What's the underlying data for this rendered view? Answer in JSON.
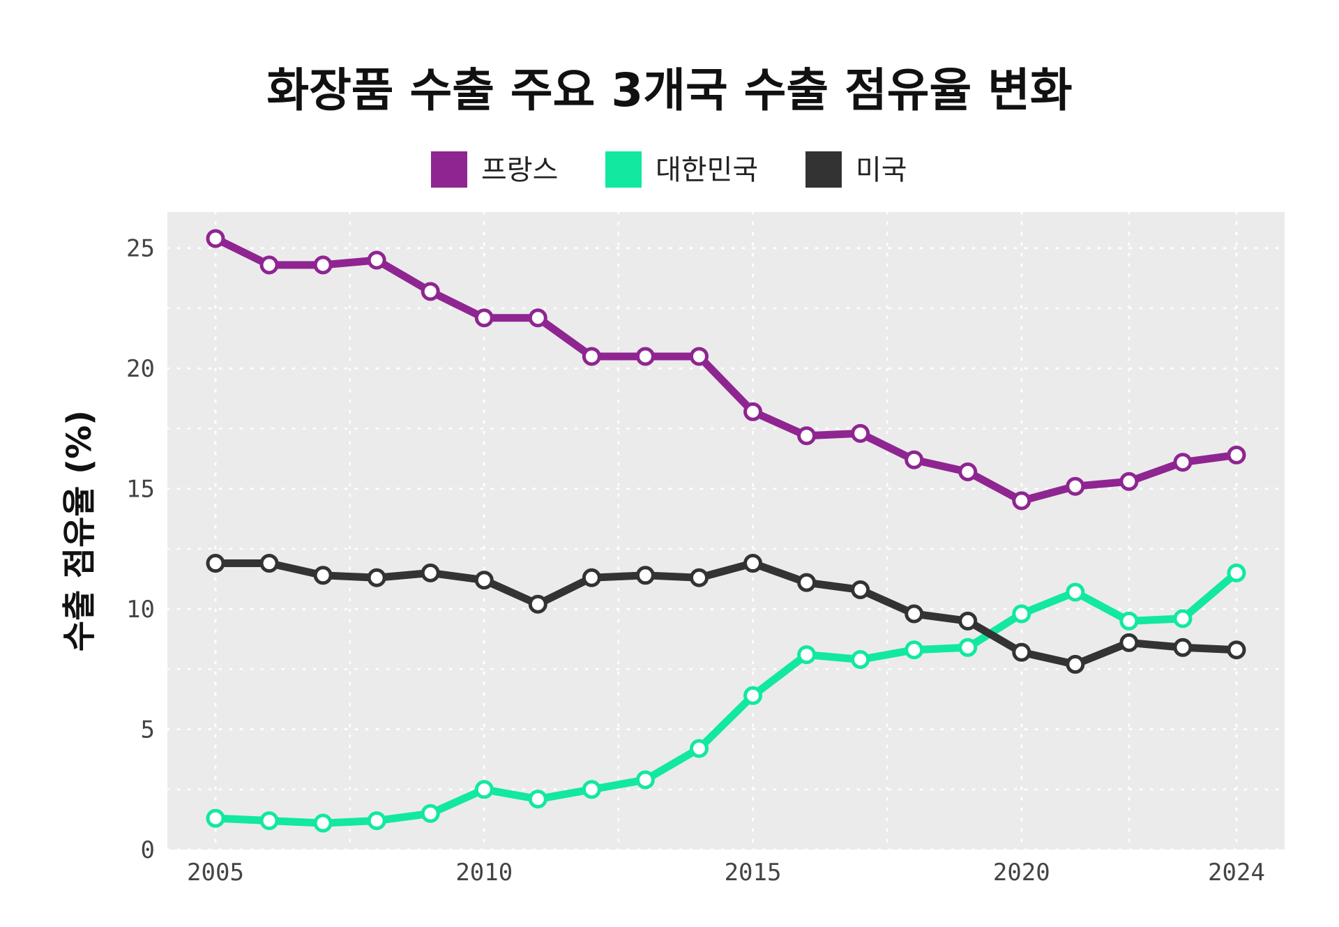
{
  "chart_data": {
    "type": "line",
    "title": "화장품 수출 주요 3개국 수출 점유율 변화",
    "xlabel": "",
    "ylabel": "수출 점유율 (%)",
    "x": [
      2005,
      2006,
      2007,
      2008,
      2009,
      2010,
      2011,
      2012,
      2013,
      2014,
      2015,
      2016,
      2017,
      2018,
      2019,
      2020,
      2021,
      2022,
      2023,
      2024
    ],
    "xticks": [
      "2005",
      "2010",
      "2015",
      "2020",
      "2024"
    ],
    "yticks": [
      "0",
      "5",
      "10",
      "15",
      "20",
      "25"
    ],
    "xlim": [
      2005,
      2024
    ],
    "ylim": [
      0,
      26.5
    ],
    "grid": true,
    "legend_position": "top",
    "series": [
      {
        "name": "프랑스",
        "color": "#8e2591",
        "values": [
          25.4,
          24.3,
          24.3,
          24.5,
          23.2,
          22.1,
          22.1,
          20.5,
          20.5,
          20.5,
          18.2,
          17.2,
          17.3,
          16.2,
          15.7,
          14.5,
          15.1,
          15.3,
          16.1,
          16.4
        ]
      },
      {
        "name": "대한민국",
        "color": "#12e8a0",
        "values": [
          1.3,
          1.2,
          1.1,
          1.2,
          1.5,
          2.5,
          2.1,
          2.5,
          2.9,
          4.2,
          6.4,
          8.1,
          7.9,
          8.3,
          8.4,
          9.8,
          10.7,
          9.5,
          9.6,
          11.5
        ]
      },
      {
        "name": "미국",
        "color": "#333333",
        "values": [
          11.9,
          11.9,
          11.4,
          11.3,
          11.5,
          11.2,
          10.2,
          11.3,
          11.4,
          11.3,
          11.9,
          11.1,
          10.8,
          9.8,
          9.5,
          8.2,
          7.7,
          8.6,
          8.4,
          8.3
        ]
      }
    ]
  }
}
